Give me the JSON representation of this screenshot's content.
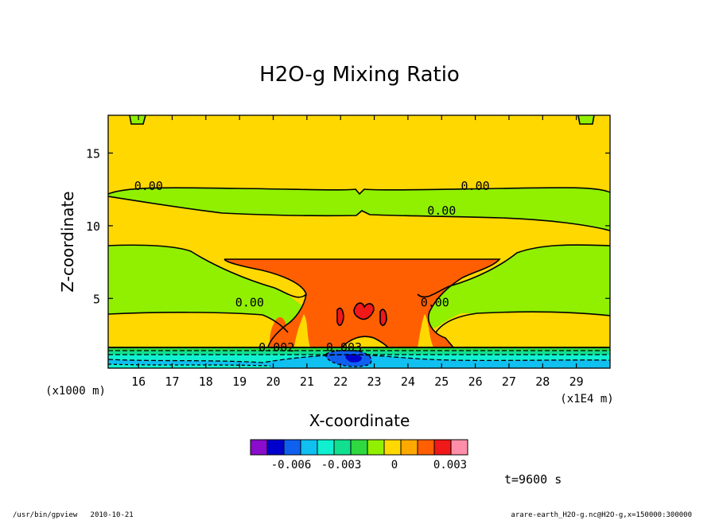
{
  "chart_data": {
    "type": "contour",
    "title": "H2O-g Mixing Ratio",
    "xlabel": "X-coordinate",
    "ylabel": "Z-coordinate",
    "x_unit": "(x1E4 m)",
    "y_unit": "(x1000 m)",
    "xlim": [
      15.1,
      30.0
    ],
    "ylim": [
      0.2,
      17.6
    ],
    "x_ticks": [
      16,
      17,
      18,
      19,
      20,
      21,
      22,
      23,
      24,
      25,
      26,
      27,
      28,
      29
    ],
    "y_ticks": [
      5,
      10,
      15
    ],
    "contour_labels": [
      {
        "text": "0.00",
        "x": 16.3,
        "y": 12.7
      },
      {
        "text": "0.00",
        "x": 26.0,
        "y": 12.7
      },
      {
        "text": "0.00",
        "x": 25.0,
        "y": 11.0
      },
      {
        "text": "0.00",
        "x": 19.3,
        "y": 4.7
      },
      {
        "text": "0.00",
        "x": 24.8,
        "y": 4.7
      },
      {
        "text": "0.002",
        "x": 20.1,
        "y": 1.6
      },
      {
        "text": "0.003",
        "x": 22.1,
        "y": 1.6
      }
    ],
    "colorbar": {
      "colors": [
        "#8a0ccc",
        "#0000cc",
        "#1060f0",
        "#10c0f0",
        "#10f0d0",
        "#10e090",
        "#30d840",
        "#90f000",
        "#ffd800",
        "#ffa800",
        "#ff5f00",
        "#f01818",
        "#ff8fa8"
      ],
      "tick_labels": [
        "-0.006",
        "-0.003",
        "0",
        "0.003"
      ]
    },
    "time_label": "t=9600 s"
  },
  "footer": {
    "left": "/usr/bin/gpview   2010-10-21",
    "right": "arare-earth_H2O-g.nc@H2O-g,x=150000:300000"
  }
}
